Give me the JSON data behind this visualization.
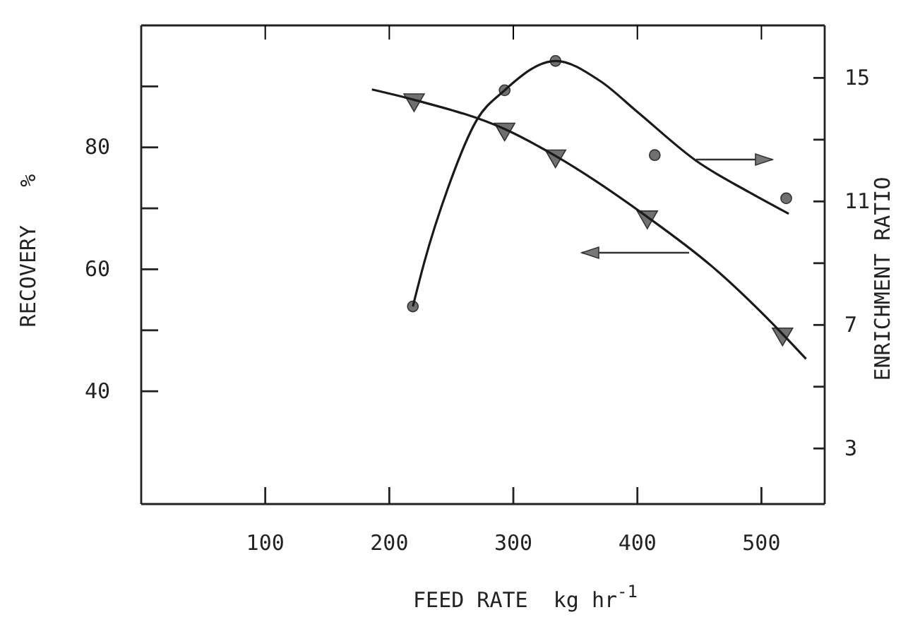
{
  "chart_data": {
    "type": "scatter",
    "xlabel": "FEED RATE  kg hr$^{-1}$",
    "ylabel": "RECOVERY   %",
    "y2label": "ENRICHMENT RATIO",
    "xlim": [
      0,
      551
    ],
    "xticks": [
      100,
      200,
      300,
      400,
      500
    ],
    "ylim": [
      21.5,
      100
    ],
    "yticks": [
      {
        "value": 40,
        "label": "40"
      },
      {
        "value": 50,
        "label": null
      },
      {
        "value": 60,
        "label": "60"
      },
      {
        "value": 70,
        "label": null
      },
      {
        "value": 80,
        "label": "80"
      },
      {
        "value": 90,
        "label": null
      }
    ],
    "y2lim": [
      1.2,
      16.7
    ],
    "y2ticks": [
      {
        "value": 3,
        "label": "3"
      },
      {
        "value": 5,
        "label": null
      },
      {
        "value": 7,
        "label": "7"
      },
      {
        "value": 9,
        "label": null
      },
      {
        "value": 11,
        "label": "11"
      },
      {
        "value": 13,
        "label": null
      },
      {
        "value": 15,
        "label": "15"
      }
    ],
    "grid": false,
    "series": [
      {
        "marker": "triangle",
        "color": "#707070",
        "x": [
          220,
          293,
          334,
          408,
          517
        ],
        "values": [
          87.8,
          83,
          78.6,
          68.6,
          49.4
        ]
      },
      {
        "type": "line",
        "marker": "none",
        "line_style": "solid",
        "color": "#1a1a1a",
        "x": [
          186,
          220,
          293,
          334,
          408,
          460,
          517,
          536
        ],
        "values": [
          89.5,
          87.8,
          83,
          78.6,
          68.6,
          60.5,
          49.4,
          45.3
        ]
      },
      {
        "marker": "circle",
        "axis": "y2",
        "color": "#707070",
        "x": [
          219,
          293,
          334,
          414,
          520
        ],
        "values": [
          7.6,
          14.6,
          15.55,
          12.5,
          11.1
        ]
      },
      {
        "type": "line",
        "marker": "none",
        "line_style": "solid",
        "axis": "y2",
        "color": "#1a1a1a",
        "x": [
          219,
          228,
          247,
          270,
          293,
          334,
          370,
          400,
          448,
          490,
          522
        ],
        "values": [
          7.6,
          9.0,
          11.4,
          13.6,
          14.6,
          15.55,
          14.9,
          13.9,
          12.3,
          11.3,
          10.6
        ]
      }
    ]
  }
}
